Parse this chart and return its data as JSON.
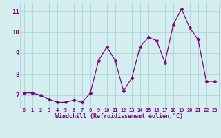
{
  "x": [
    0,
    1,
    2,
    3,
    4,
    5,
    6,
    7,
    8,
    9,
    10,
    11,
    12,
    13,
    14,
    15,
    16,
    17,
    18,
    19,
    20,
    21,
    22,
    23
  ],
  "y": [
    7.1,
    7.1,
    7.0,
    6.8,
    6.65,
    6.65,
    6.75,
    6.65,
    7.1,
    8.65,
    9.3,
    8.65,
    7.2,
    7.8,
    9.3,
    9.75,
    9.6,
    8.55,
    10.35,
    11.1,
    10.2,
    9.65,
    7.65,
    7.65
  ],
  "line_color": "#800080",
  "marker": "D",
  "marker_size": 2.5,
  "bg_color": "#d4eef0",
  "grid_color": "#b0d8da",
  "xlabel": "Windchill (Refroidissement éolien,°C)",
  "xlabel_color": "#800080",
  "tick_color": "#800080",
  "ylabel_ticks": [
    7,
    8,
    9,
    10,
    11
  ],
  "xlim": [
    -0.5,
    23.5
  ],
  "ylim": [
    6.4,
    11.4
  ]
}
